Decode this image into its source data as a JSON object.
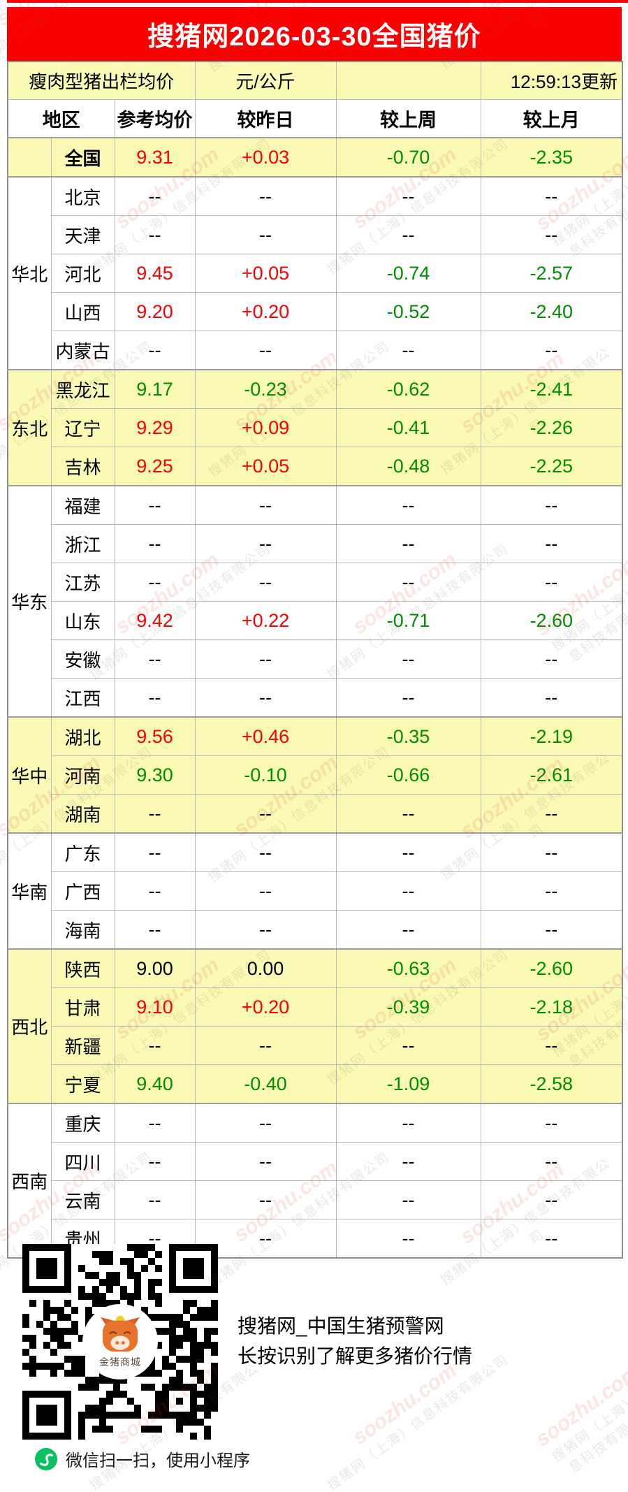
{
  "header": {
    "title": "搜猪网2026-03-30全国猪价"
  },
  "subheader": {
    "product": "瘦肉型猪出栏均价",
    "unit": "元/公斤",
    "updated": "12:59:13更新"
  },
  "chart_data": {
    "type": "table",
    "title": "搜猪网2026-03-30全国猪价",
    "unit": "元/公斤",
    "updated_time": "12:59:13",
    "columns": [
      "地区",
      "参考均价",
      "较昨日",
      "较上周",
      "较上月"
    ],
    "rows": [
      [
        "",
        "全国",
        "9.31",
        "+0.03",
        "-0.70",
        "-2.35"
      ],
      [
        "华北",
        "北京",
        "--",
        "--",
        "--",
        "--"
      ],
      [
        "华北",
        "天津",
        "--",
        "--",
        "--",
        "--"
      ],
      [
        "华北",
        "河北",
        "9.45",
        "+0.05",
        "-0.74",
        "-2.57"
      ],
      [
        "华北",
        "山西",
        "9.20",
        "+0.20",
        "-0.52",
        "-2.40"
      ],
      [
        "华北",
        "内蒙古",
        "--",
        "--",
        "--",
        "--"
      ],
      [
        "东北",
        "黑龙江",
        "9.17",
        "-0.23",
        "-0.62",
        "-2.41"
      ],
      [
        "东北",
        "辽宁",
        "9.29",
        "+0.09",
        "-0.41",
        "-2.26"
      ],
      [
        "东北",
        "吉林",
        "9.25",
        "+0.05",
        "-0.48",
        "-2.25"
      ],
      [
        "华东",
        "福建",
        "--",
        "--",
        "--",
        "--"
      ],
      [
        "华东",
        "浙江",
        "--",
        "--",
        "--",
        "--"
      ],
      [
        "华东",
        "江苏",
        "--",
        "--",
        "--",
        "--"
      ],
      [
        "华东",
        "山东",
        "9.42",
        "+0.22",
        "-0.71",
        "-2.60"
      ],
      [
        "华东",
        "安徽",
        "--",
        "--",
        "--",
        "--"
      ],
      [
        "华东",
        "江西",
        "--",
        "--",
        "--",
        "--"
      ],
      [
        "华中",
        "湖北",
        "9.56",
        "+0.46",
        "-0.35",
        "-2.19"
      ],
      [
        "华中",
        "河南",
        "9.30",
        "-0.10",
        "-0.66",
        "-2.61"
      ],
      [
        "华中",
        "湖南",
        "--",
        "--",
        "--",
        "--"
      ],
      [
        "华南",
        "广东",
        "--",
        "--",
        "--",
        "--"
      ],
      [
        "华南",
        "广西",
        "--",
        "--",
        "--",
        "--"
      ],
      [
        "华南",
        "海南",
        "--",
        "--",
        "--",
        "--"
      ],
      [
        "西北",
        "陕西",
        "9.00",
        "0.00",
        "-0.63",
        "-2.60"
      ],
      [
        "西北",
        "甘肃",
        "9.10",
        "+0.20",
        "-0.39",
        "-2.18"
      ],
      [
        "西北",
        "新疆",
        "--",
        "--",
        "--",
        "--"
      ],
      [
        "西北",
        "宁夏",
        "9.40",
        "-0.40",
        "-1.09",
        "-2.58"
      ],
      [
        "西南",
        "重庆",
        "--",
        "--",
        "--",
        "--"
      ],
      [
        "西南",
        "四川",
        "--",
        "--",
        "--",
        "--"
      ],
      [
        "西南",
        "云南",
        "--",
        "--",
        "--",
        "--"
      ],
      [
        "西南",
        "贵州",
        "--",
        "--",
        "--",
        "--"
      ]
    ]
  },
  "table": {
    "header_columns": [
      "地区",
      "参考均价",
      "较昨日",
      "较上周",
      "较上月"
    ],
    "na_text": "--",
    "bold_row": "全国",
    "region_highlight": {
      "": true,
      "华北": false,
      "东北": true,
      "华东": false,
      "华中": true,
      "华南": false,
      "西北": true,
      "西南": false
    }
  },
  "footer": {
    "line1": "搜猪网_中国生猪预警网",
    "line2": "长按识别了解更多猪价行情",
    "wechat_tip": "微信扫一扫，使用小程序",
    "qr_badge": "金猪商城"
  },
  "watermark": {
    "site": "soozhu.com",
    "company": "搜猪网（上海）信息科技有限公司"
  },
  "colors": {
    "brand_red": "#fb0000",
    "highlight_yellow": "#fafab4",
    "up_red": "#fc0000",
    "down_green": "#008f00",
    "wechat_green": "#07c160",
    "pig_orange": "#e8742c"
  }
}
